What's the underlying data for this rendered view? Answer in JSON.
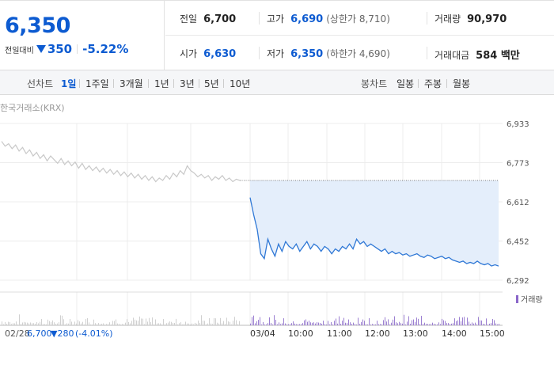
{
  "quote": {
    "price": "6,350",
    "change_label": "전일대비",
    "change_value": "350",
    "change_pct": "-5.22%"
  },
  "info": {
    "prev_label": "전일",
    "prev_value": "6,700",
    "high_label": "고가",
    "high_value": "6,690",
    "high_sub": "(상한가 8,710)",
    "volume_label": "거래량",
    "volume_value": "90,970",
    "open_label": "시가",
    "open_value": "6,630",
    "low_label": "저가",
    "low_value": "6,350",
    "low_sub": "(하한가 4,690)",
    "amount_label": "거래대금",
    "amount_value": "584 백만"
  },
  "tabs": {
    "line_label": "선차트",
    "line_items": [
      "1일",
      "1주일",
      "3개월",
      "1년",
      "3년",
      "5년",
      "10년"
    ],
    "active": "1일",
    "candle_label": "봉차트",
    "candle_items": [
      "일봉",
      "주봉",
      "월봉"
    ]
  },
  "chart_data": {
    "type": "line",
    "source": "한국거래소(KRX)",
    "y_ticks": [
      "6,933",
      "6,773",
      "6,612",
      "6,452",
      "6,292"
    ],
    "ylim": [
      6292,
      6933
    ],
    "prev_day": {
      "date": "02/28",
      "close": "6,700",
      "change": "▼280",
      "change_pct": "(-4.01%)",
      "values": [
        6860,
        6840,
        6850,
        6830,
        6845,
        6820,
        6835,
        6810,
        6825,
        6800,
        6815,
        6790,
        6805,
        6780,
        6800,
        6785,
        6770,
        6790,
        6765,
        6780,
        6760,
        6775,
        6750,
        6770,
        6745,
        6760,
        6740,
        6755,
        6735,
        6750,
        6730,
        6745,
        6725,
        6740,
        6720,
        6735,
        6715,
        6730,
        6710,
        6725,
        6705,
        6720,
        6700,
        6715,
        6695,
        6710,
        6700,
        6720,
        6705,
        6730,
        6715,
        6740,
        6725,
        6760,
        6740,
        6730,
        6715,
        6725,
        6710,
        6720,
        6700,
        6715,
        6705,
        6720,
        6700,
        6710,
        6695,
        6705,
        6700
      ]
    },
    "today": {
      "date": "03/04",
      "open_ref": 6700,
      "x_labels": [
        "03/04",
        "10:00",
        "11:00",
        "12:00",
        "13:00",
        "14:00",
        "15:00"
      ],
      "values": [
        6630,
        6560,
        6500,
        6400,
        6380,
        6460,
        6420,
        6390,
        6440,
        6410,
        6450,
        6430,
        6420,
        6440,
        6410,
        6430,
        6450,
        6420,
        6440,
        6430,
        6410,
        6430,
        6420,
        6400,
        6420,
        6410,
        6430,
        6420,
        6440,
        6420,
        6460,
        6440,
        6450,
        6430,
        6440,
        6430,
        6420,
        6410,
        6420,
        6400,
        6410,
        6400,
        6405,
        6395,
        6400,
        6390,
        6395,
        6400,
        6390,
        6385,
        6395,
        6390,
        6380,
        6385,
        6390,
        6380,
        6385,
        6375,
        6370,
        6365,
        6370,
        6360,
        6365,
        6360,
        6370,
        6360,
        6355,
        6360,
        6350,
        6355,
        6350
      ]
    },
    "volume_legend": "거래량"
  }
}
